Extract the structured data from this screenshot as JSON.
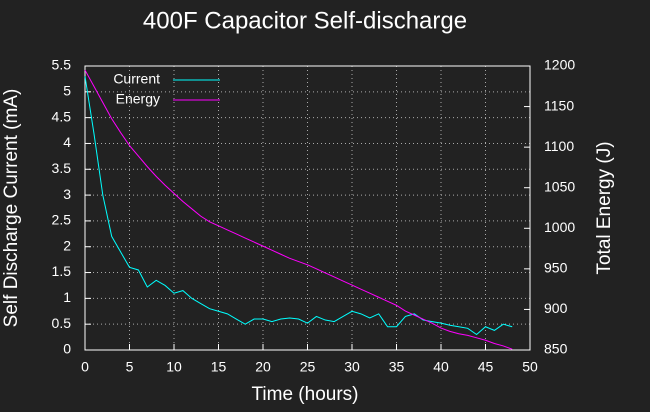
{
  "chart_data": {
    "type": "line",
    "title": "400F Capacitor Self-discharge",
    "xlabel": "Time (hours)",
    "ylabel": "Self Discharge Current (mA)",
    "y2label": "Total Energy (J)",
    "x": [
      0,
      1,
      2,
      3,
      4,
      5,
      6,
      7,
      8,
      9,
      10,
      11,
      12,
      13,
      14,
      15,
      16,
      17,
      18,
      19,
      20,
      21,
      22,
      23,
      24,
      25,
      26,
      27,
      28,
      29,
      30,
      31,
      32,
      33,
      34,
      35,
      36,
      37,
      38,
      39,
      40,
      41,
      42,
      43,
      44,
      45,
      46,
      47,
      48
    ],
    "series": [
      {
        "name": "Current",
        "color": "#00ffff",
        "axis": "y",
        "values": [
          5.3,
          4.2,
          3.0,
          2.2,
          1.9,
          1.6,
          1.55,
          1.22,
          1.35,
          1.25,
          1.1,
          1.15,
          1.0,
          0.9,
          0.8,
          0.75,
          0.7,
          0.6,
          0.5,
          0.6,
          0.6,
          0.55,
          0.6,
          0.62,
          0.6,
          0.52,
          0.65,
          0.58,
          0.55,
          0.65,
          0.75,
          0.7,
          0.62,
          0.7,
          0.45,
          0.45,
          0.65,
          0.7,
          0.58,
          0.55,
          0.52,
          0.48,
          0.45,
          0.42,
          0.3,
          0.45,
          0.38,
          0.5,
          0.45
        ]
      },
      {
        "name": "Energy",
        "color": "#ff00ff",
        "axis": "y2",
        "values": [
          1195,
          1175,
          1155,
          1135,
          1118,
          1102,
          1089,
          1076,
          1064,
          1053,
          1043,
          1033,
          1024,
          1015,
          1008,
          1003,
          998,
          993,
          988,
          983,
          978,
          973,
          968,
          963,
          959,
          955,
          950,
          945,
          940,
          935,
          930,
          925,
          920,
          915,
          910,
          905,
          898,
          893,
          888,
          883,
          877,
          873,
          870,
          868,
          865,
          862,
          858,
          855,
          851
        ]
      }
    ],
    "xlim": [
      0,
      50
    ],
    "xticks": [
      0,
      5,
      10,
      15,
      20,
      25,
      30,
      35,
      40,
      45,
      50
    ],
    "ylim": [
      0,
      5.5
    ],
    "yticks": [
      0,
      0.5,
      1,
      1.5,
      2,
      2.5,
      3,
      3.5,
      4,
      4.5,
      5,
      5.5
    ],
    "y2lim": [
      850,
      1200
    ],
    "y2ticks": [
      850,
      900,
      950,
      1000,
      1050,
      1100,
      1150,
      1200
    ],
    "grid": true,
    "legend": "top-left"
  }
}
